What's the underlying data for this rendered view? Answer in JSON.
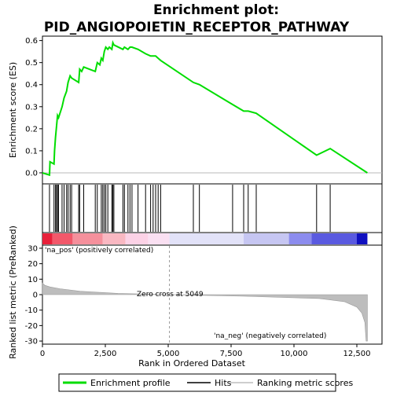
{
  "chart_data": {
    "type": "line",
    "title": "Enrichment plot:\nPID_ANGIOPOIETIN_RECEPTOR_PATHWAY",
    "colors": {
      "enrichment": "#00dd00",
      "hits": "#000000",
      "ranking": "#bdbdbd",
      "pos_label": "#d60000",
      "neg_label": "#0000c0"
    },
    "enrichment_panel": {
      "ylabel": "Enrichment score (ES)",
      "ylim": [
        -0.05,
        0.62
      ],
      "yticks": [
        0.0,
        0.1,
        0.2,
        0.3,
        0.4,
        0.5,
        0.6
      ],
      "ytick_labels": [
        "0.0",
        "0.1",
        "0.2",
        "0.3",
        "0.4",
        "0.5",
        "0.6"
      ],
      "x": [
        0,
        280,
        300,
        460,
        480,
        520,
        560,
        600,
        640,
        780,
        860,
        960,
        1020,
        1100,
        1160,
        1440,
        1480,
        1560,
        1640,
        2100,
        2180,
        2280,
        2340,
        2400,
        2460,
        2520,
        2600,
        2660,
        2760,
        2800,
        2840,
        3200,
        3260,
        3400,
        3480,
        3560,
        3800,
        4100,
        4300,
        4400,
        4500,
        4600,
        4700,
        6000,
        6240,
        7560,
        8000,
        8180,
        8500,
        10900,
        11440,
        12920
      ],
      "y": [
        0.0,
        -0.01,
        0.05,
        0.04,
        0.1,
        0.16,
        0.21,
        0.26,
        0.25,
        0.3,
        0.34,
        0.37,
        0.41,
        0.44,
        0.43,
        0.41,
        0.47,
        0.46,
        0.48,
        0.46,
        0.5,
        0.49,
        0.52,
        0.51,
        0.55,
        0.57,
        0.56,
        0.57,
        0.56,
        0.59,
        0.58,
        0.56,
        0.57,
        0.56,
        0.57,
        0.57,
        0.56,
        0.54,
        0.53,
        0.53,
        0.53,
        0.52,
        0.51,
        0.41,
        0.4,
        0.31,
        0.28,
        0.28,
        0.27,
        0.08,
        0.11,
        0.0
      ]
    },
    "hits": [
      280,
      460,
      520,
      560,
      600,
      640,
      780,
      860,
      960,
      1020,
      1100,
      1160,
      1440,
      1480,
      1640,
      2100,
      2180,
      2340,
      2400,
      2460,
      2520,
      2600,
      2760,
      2800,
      2840,
      3200,
      3260,
      3400,
      3480,
      3560,
      3800,
      4100,
      4300,
      4400,
      4500,
      4600,
      4700,
      6000,
      6240,
      7560,
      8000,
      8180,
      8500,
      10900,
      11440
    ],
    "ranking_panel": {
      "ylabel": "Ranked list metric (PreRanked)",
      "ylim": [
        -32,
        32
      ],
      "yticks": [
        -30,
        -20,
        -10,
        0,
        10,
        20,
        30
      ],
      "ytick_labels": [
        "-30",
        "-20",
        "-10",
        "0",
        "10",
        "20",
        "30"
      ],
      "x": [
        0,
        100,
        300,
        700,
        1500,
        3000,
        5049,
        8000,
        11000,
        12000,
        12500,
        12700,
        12820,
        12870,
        12920
      ],
      "y": [
        7.5,
        6,
        5,
        3.8,
        2.2,
        0.8,
        0,
        -1,
        -2.5,
        -4.5,
        -8,
        -12,
        -18,
        -30,
        -30
      ],
      "pos_label": "'na_pos' (positively correlated)",
      "neg_label": "'na_neg' (negatively correlated)",
      "zero_cross_label": "Zero cross at 5049",
      "zero_cross": 5049
    },
    "xlabel": "Rank in Ordered Dataset",
    "xlim": [
      0,
      13500
    ],
    "xticks": [
      0,
      2500,
      5000,
      7500,
      10000,
      12500
    ],
    "xtick_labels": [
      "0",
      "2,500",
      "5,000",
      "7,500",
      "10,000",
      "12,500"
    ],
    "heatbar": [
      {
        "from": 0,
        "to": 400,
        "color": "#e8203a"
      },
      {
        "from": 400,
        "to": 1200,
        "color": "#f2586a"
      },
      {
        "from": 1200,
        "to": 2400,
        "color": "#f5909c"
      },
      {
        "from": 2400,
        "to": 3300,
        "color": "#f9b8c2"
      },
      {
        "from": 3300,
        "to": 4200,
        "color": "#fcd2e6"
      },
      {
        "from": 4200,
        "to": 5049,
        "color": "#fae0f2"
      },
      {
        "from": 5049,
        "to": 8000,
        "color": "#e2e2f8"
      },
      {
        "from": 8000,
        "to": 9800,
        "color": "#c6c6f2"
      },
      {
        "from": 9800,
        "to": 10700,
        "color": "#8c8cee"
      },
      {
        "from": 10700,
        "to": 12500,
        "color": "#5a5ae0"
      },
      {
        "from": 12500,
        "to": 12920,
        "color": "#1010c0"
      }
    ],
    "legend": {
      "placement": "bottom",
      "items": [
        {
          "label": "Enrichment profile",
          "kind": "line",
          "color": "#00dd00"
        },
        {
          "label": "Hits",
          "kind": "line",
          "color": "#000000"
        },
        {
          "label": "Ranking metric scores",
          "kind": "line",
          "color": "#bdbdbd"
        }
      ]
    }
  }
}
